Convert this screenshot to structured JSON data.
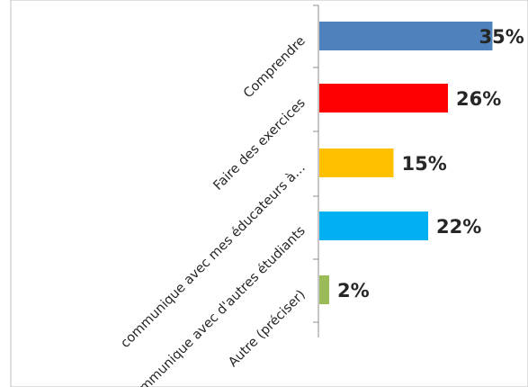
{
  "chart_data": {
    "type": "bar",
    "orientation": "horizontal",
    "categories": [
      "Comprendre",
      "Faire des exercices",
      "communique avec mes éducateurs à…",
      "communique avec d'autres étudiants",
      "Autre (préciser)"
    ],
    "values": [
      35,
      26,
      15,
      22,
      2
    ],
    "data_labels": [
      "35%",
      "26%",
      "15%",
      "22%",
      "2%"
    ],
    "colors": [
      "#4f81bd",
      "#ff0000",
      "#ffc000",
      "#00b0f0",
      "#9bbb59"
    ],
    "xlim": [
      0,
      40
    ],
    "grid": false,
    "legend": "none"
  }
}
